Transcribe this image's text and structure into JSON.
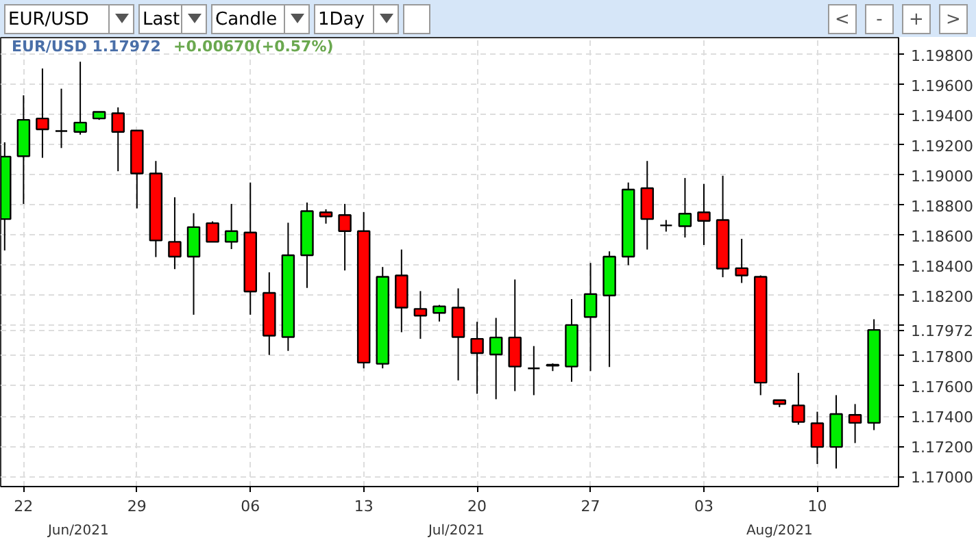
{
  "chart_data": {
    "type": "candlestick",
    "title": "EUR/USD 1.17972",
    "subtitle": "+0.00670(+0.57%)",
    "annotations": [
      "EUR/USD",
      "Last",
      "Candle",
      "1Day",
      "<",
      "-",
      "+",
      ">",
      "Jun/2021",
      "Jul/2021",
      "Aug/2021"
    ],
    "categories": [
      null,
      "22",
      null,
      null,
      null,
      null,
      null,
      "29",
      null,
      null,
      null,
      null,
      null,
      "06",
      null,
      null,
      null,
      null,
      null,
      "13",
      null,
      null,
      null,
      null,
      null,
      "20",
      null,
      null,
      null,
      null,
      null,
      "27",
      null,
      null,
      null,
      null,
      null,
      "03",
      null,
      null,
      null,
      null,
      null,
      "10",
      null,
      null,
      null
    ],
    "ohlc": [
      [
        1.18708,
        1.19218,
        1.185,
        1.19123
      ],
      [
        1.19126,
        1.1953,
        1.18809,
        1.19367
      ],
      [
        1.19376,
        1.19708,
        1.19115,
        1.19304
      ],
      [
        1.19293,
        1.19574,
        1.1918,
        1.19293
      ],
      [
        1.19287,
        1.19753,
        1.19269,
        1.19349
      ],
      [
        1.19376,
        1.1942,
        1.19367,
        1.1942
      ],
      [
        1.19411,
        1.1945,
        1.19026,
        1.19287
      ],
      [
        1.19296,
        1.19296,
        1.18779,
        1.19011
      ],
      [
        1.19011,
        1.19094,
        1.18456,
        1.18566
      ],
      [
        1.18557,
        1.18853,
        1.18376,
        1.18459
      ],
      [
        1.18459,
        1.18747,
        1.18073,
        1.18655
      ],
      [
        1.18681,
        1.18693,
        1.18557,
        1.18557
      ],
      [
        1.18557,
        1.18809,
        1.18509,
        1.18628
      ],
      [
        1.18619,
        1.18951,
        1.18073,
        1.18227
      ],
      [
        1.18218,
        1.18355,
        1.17806,
        1.17934
      ],
      [
        1.17925,
        1.18684,
        1.17833,
        1.18468
      ],
      [
        1.18468,
        1.18818,
        1.18251,
        1.18761
      ],
      [
        1.18753,
        1.18773,
        1.18678,
        1.18726
      ],
      [
        1.18735,
        1.18809,
        1.18367,
        1.18628
      ],
      [
        1.18628,
        1.18755,
        1.17717,
        1.17755
      ],
      [
        1.17747,
        1.1839,
        1.17717,
        1.18325
      ],
      [
        1.18334,
        1.18506,
        1.17957,
        1.1812
      ],
      [
        1.18112,
        1.1823,
        1.17913,
        1.18067
      ],
      [
        1.18085,
        1.18138,
        1.18028,
        1.18129
      ],
      [
        1.1812,
        1.18248,
        1.17637,
        1.17925
      ],
      [
        1.17913,
        1.18026,
        1.17548,
        1.17818
      ],
      [
        1.17809,
        1.18052,
        1.17512,
        1.17922
      ],
      [
        1.17922,
        1.18307,
        1.17566,
        1.17729
      ],
      [
        1.17717,
        1.17865,
        1.17539,
        1.17717
      ],
      [
        1.17735,
        1.1775,
        1.17699,
        1.17741
      ],
      [
        1.17729,
        1.18177,
        1.17628,
        1.18005
      ],
      [
        1.18058,
        1.18417,
        1.17699,
        1.1821
      ],
      [
        1.18201,
        1.18494,
        1.17726,
        1.18459
      ],
      [
        1.18459,
        1.18951,
        1.18402,
        1.18904
      ],
      [
        1.18913,
        1.19094,
        1.18506,
        1.18708
      ],
      [
        1.18666,
        1.18702,
        1.18625,
        1.18666
      ],
      [
        1.18661,
        1.18981,
        1.18586,
        1.18744
      ],
      [
        1.18753,
        1.18942,
        1.18536,
        1.18696
      ],
      [
        1.18702,
        1.18996,
        1.18322,
        1.18379
      ],
      [
        1.18382,
        1.18577,
        1.18284,
        1.18334
      ],
      [
        1.18325,
        1.18334,
        1.17539,
        1.17622
      ],
      [
        1.17506,
        1.17506,
        1.17459,
        1.1748
      ],
      [
        1.17471,
        1.17687,
        1.17343,
        1.17361
      ],
      [
        1.17352,
        1.17429,
        1.17082,
        1.17195
      ],
      [
        1.17195,
        1.17539,
        1.17052,
        1.17414
      ],
      [
        1.17408,
        1.1748,
        1.17221,
        1.17355
      ],
      [
        1.17355,
        1.18043,
        1.17307,
        1.17972
      ]
    ],
    "colors": [
      "#00ee00",
      "#00ee00",
      "#ff0000",
      "#000000",
      "#00ee00",
      "#00ee00",
      "#ff0000",
      "#ff0000",
      "#ff0000",
      "#ff0000",
      "#00ee00",
      "#ff0000",
      "#00ee00",
      "#ff0000",
      "#ff0000",
      "#00ee00",
      "#00ee00",
      "#ff0000",
      "#ff0000",
      "#ff0000",
      "#00ee00",
      "#ff0000",
      "#ff0000",
      "#00ee00",
      "#ff0000",
      "#ff0000",
      "#00ee00",
      "#ff0000",
      "#000000",
      "#00ee00",
      "#00ee00",
      "#00ee00",
      "#00ee00",
      "#00ee00",
      "#ff0000",
      "#000000",
      "#00ee00",
      "#ff0000",
      "#ff0000",
      "#ff0000",
      "#ff0000",
      "#ff0000",
      "#ff0000",
      "#ff0000",
      "#00ee00",
      "#ff0000",
      "#00ee00"
    ],
    "ylim": [
      1.16932,
      1.19913
    ],
    "yticks": [
      {
        "value": 1.17,
        "label": "1.17000"
      },
      {
        "value": 1.172,
        "label": "1.17200"
      },
      {
        "value": 1.174,
        "label": "1.17400"
      },
      {
        "value": 1.176,
        "label": "1.17600"
      },
      {
        "value": 1.178,
        "label": "1.17800"
      },
      {
        "value": 1.17972,
        "label": "1.17972"
      },
      {
        "value": 1.18,
        "label": null
      },
      {
        "value": 1.182,
        "label": "1.18200"
      },
      {
        "value": 1.184,
        "label": "1.18400"
      },
      {
        "value": 1.186,
        "label": "1.18600"
      },
      {
        "value": 1.188,
        "label": "1.18800"
      },
      {
        "value": 1.19,
        "label": "1.19000"
      },
      {
        "value": 1.192,
        "label": "1.19200"
      },
      {
        "value": 1.194,
        "label": "1.19400"
      },
      {
        "value": 1.196,
        "label": "1.19600"
      },
      {
        "value": 1.198,
        "label": "1.19800"
      }
    ],
    "grid": true,
    "legend": false
  }
}
